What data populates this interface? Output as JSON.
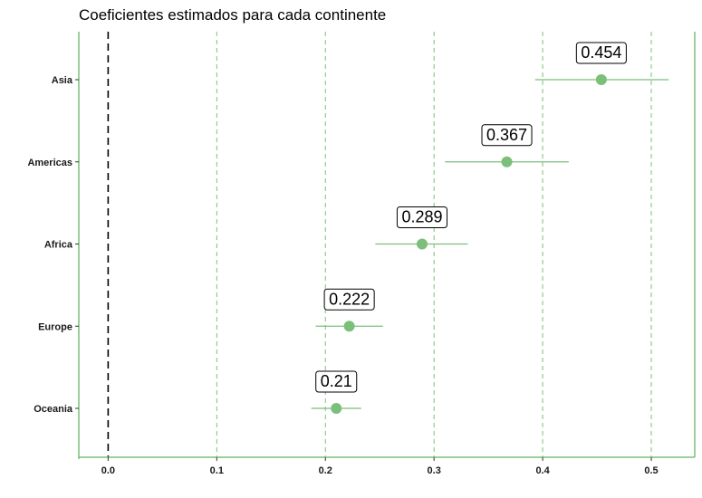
{
  "chart_data": {
    "type": "scatter",
    "title": "Coeficientes estimados para cada continente",
    "xlabel": "",
    "ylabel": "",
    "xlim": [
      -0.027,
      0.54
    ],
    "x_ticks": [
      0.0,
      0.1,
      0.2,
      0.3,
      0.4,
      0.5
    ],
    "x_tick_labels": [
      "0.0",
      "0.1",
      "0.2",
      "0.3",
      "0.4",
      "0.5"
    ],
    "reference_line": 0.0,
    "grid": "vertical dashed at major ticks",
    "colors": {
      "point": "#7bbf7b",
      "errorbar": "#7bbf7b",
      "grid": "#7bbf7b",
      "axis": "#7bbf7b",
      "reference": "#000000"
    },
    "categories": [
      "Asia",
      "Americas",
      "Africa",
      "Europe",
      "Oceania"
    ],
    "estimates": [
      0.454,
      0.367,
      0.289,
      0.222,
      0.21
    ],
    "lower": [
      0.393,
      0.31,
      0.246,
      0.191,
      0.187
    ],
    "upper": [
      0.516,
      0.424,
      0.331,
      0.253,
      0.233
    ],
    "value_labels": [
      "0.454",
      "0.367",
      "0.289",
      "0.222",
      "0.21"
    ]
  }
}
